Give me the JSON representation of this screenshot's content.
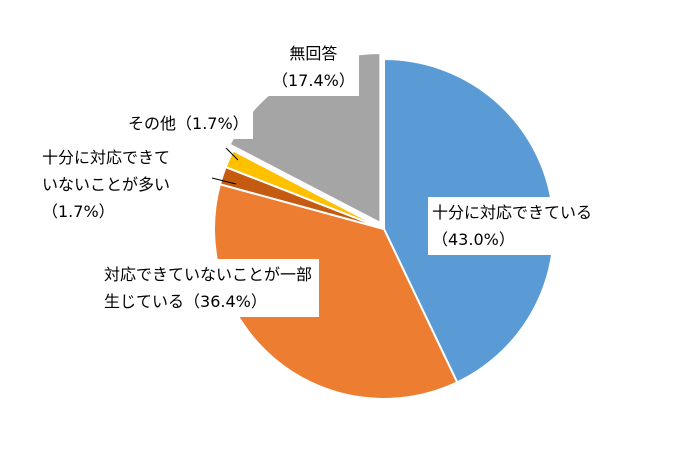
{
  "chart_data": {
    "type": "pie",
    "categories": [
      "十分に対応できている",
      "対応できていないことが一部生じている",
      "十分に対応できていないことが多い",
      "その他",
      "無回答"
    ],
    "values": [
      43.0,
      36.4,
      1.7,
      1.7,
      17.4
    ],
    "value_labels": [
      "（43.0%）",
      "（36.4%）",
      "（1.7%）",
      "（1.7%）",
      "（17.4%）"
    ],
    "colors": [
      "#5b9bd5",
      "#ed7d31",
      "#c55a11",
      "#ffc000",
      "#a5a5a5"
    ]
  }
}
